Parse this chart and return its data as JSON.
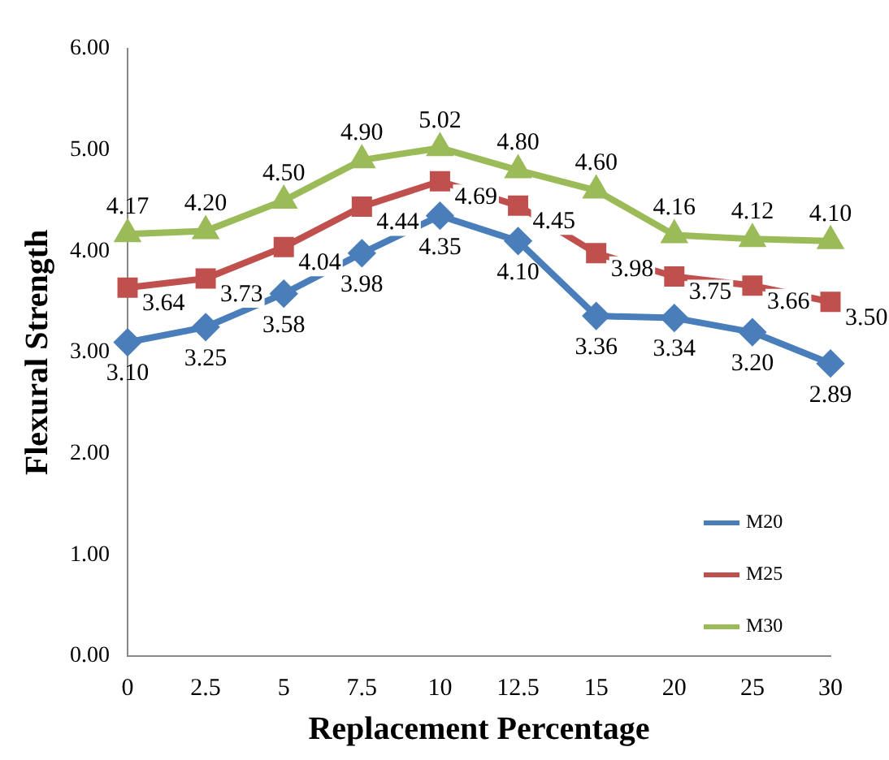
{
  "chart_data": {
    "type": "line",
    "xlabel": "Replacement Percentage",
    "ylabel": "Flexural Strength",
    "categories": [
      "0",
      "2.5",
      "5",
      "7.5",
      "10",
      "12.5",
      "15",
      "20",
      "25",
      "30"
    ],
    "ylim": [
      0,
      6
    ],
    "yticks": [
      {
        "value": 0,
        "label": "0.00"
      },
      {
        "value": 1,
        "label": "1.00"
      },
      {
        "value": 2,
        "label": "2.00"
      },
      {
        "value": 3,
        "label": "3.00"
      },
      {
        "value": 4,
        "label": "4.00"
      },
      {
        "value": 5,
        "label": "5.00"
      },
      {
        "value": 6,
        "label": "6.00"
      }
    ],
    "grid": false,
    "legend": "bottom right",
    "series": [
      {
        "name": "M20",
        "color": "#4a7ebb",
        "marker": "diamond",
        "values": [
          3.1,
          3.25,
          3.58,
          3.98,
          4.35,
          4.1,
          3.36,
          3.34,
          3.2,
          2.89
        ],
        "value_labels": [
          "3.10",
          "3.25",
          "3.58",
          "3.98",
          "4.35",
          "4.10",
          "3.36",
          "3.34",
          "3.20",
          "2.89"
        ]
      },
      {
        "name": "M25",
        "color": "#c0504d",
        "marker": "square",
        "values": [
          3.64,
          3.73,
          4.04,
          4.44,
          4.69,
          4.45,
          3.98,
          3.75,
          3.66,
          3.5
        ],
        "value_labels": [
          "3.64",
          "3.73",
          "4.04",
          "4.44",
          "4.69",
          "4.45",
          "3.98",
          "3.75",
          "3.66",
          "3.50"
        ]
      },
      {
        "name": "M30",
        "color": "#9bbb59",
        "marker": "triangle",
        "values": [
          4.17,
          4.2,
          4.5,
          4.9,
          5.02,
          4.8,
          4.6,
          4.16,
          4.12,
          4.1
        ],
        "value_labels": [
          "4.17",
          "4.20",
          "4.50",
          "4.90",
          "5.02",
          "4.80",
          "4.60",
          "4.16",
          "4.12",
          "4.10"
        ]
      }
    ]
  }
}
